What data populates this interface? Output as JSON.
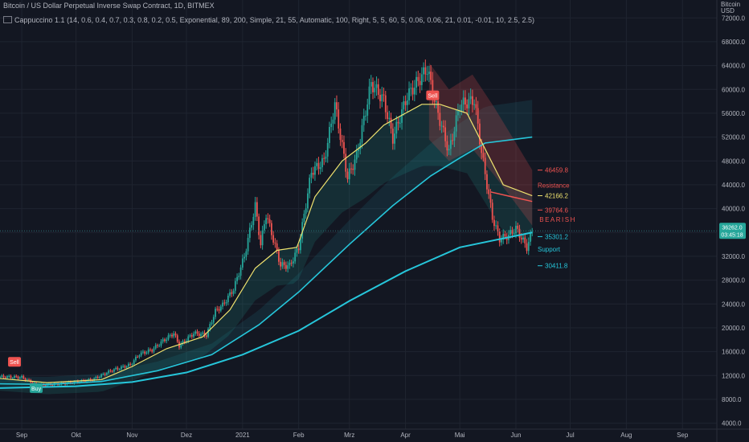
{
  "header": {
    "title": "Bitcoin / US Dollar Perpetual Inverse Swap Contract, 1D, BITMEX",
    "indicator_name": "Cappuccino 1.1",
    "indicator_params": "(14, 0.6, 0.4, 0.7, 0.3, 0.8, 0.2, 0.5, Exponential, 89, 200, Simple, 21, 55, Automatic, 100, Right, 5, 5, 60, 5, 0.06, 0.06, 21, 0.01, -0.01, 10, 2.5, 2.5)"
  },
  "currency": [
    "Bitcoin",
    "USD"
  ],
  "axis": {
    "price_ticks": [
      4000,
      8000,
      12000,
      16000,
      20000,
      24000,
      28000,
      32000,
      36000,
      40000,
      44000,
      48000,
      52000,
      56000,
      60000,
      64000,
      68000,
      72000
    ],
    "price_labels": [
      "4000.0",
      "8000.0",
      "12000.0",
      "16000.0",
      "20000.0",
      "24000.0",
      "28000.0",
      "32000.0",
      "36000.0",
      "40000.0",
      "44000.0",
      "48000.0",
      "52000.0",
      "56000.0",
      "60000.0",
      "64000.0",
      "68000.0",
      "72000.0"
    ],
    "time_labels": [
      "Sep",
      "Okt",
      "Nov",
      "Dez",
      "2021",
      "Feb",
      "Mrz",
      "Apr",
      "Mai",
      "Jun",
      "Jul",
      "Aug",
      "Sep"
    ],
    "ylim": [
      3000,
      75000
    ]
  },
  "last_price": {
    "value": "36262.0",
    "countdown": "03:45:18",
    "price": 36262
  },
  "signals": [
    {
      "label": "Sell",
      "kind": "sell",
      "date": "2020-08-28",
      "price": 14300
    },
    {
      "label": "Buy",
      "kind": "buy",
      "date": "2020-09-09",
      "price": 9900
    },
    {
      "label": "Sell",
      "kind": "sell",
      "date": "2021-04-16",
      "price": 59000
    }
  ],
  "levels": [
    {
      "label": "46459.8",
      "price": 46459.8,
      "color": "#f05350"
    },
    {
      "label": "42166.2",
      "price": 42166.2,
      "color": "#f0e36f"
    },
    {
      "label": "39764.6",
      "price": 39764.6,
      "color": "#f05350"
    },
    {
      "label": "35301.2",
      "price": 35301.2,
      "color": "#26c6da"
    },
    {
      "label": "30411.8",
      "price": 30411.8,
      "color": "#26c6da"
    }
  ],
  "annotations": {
    "resistance": "Resistance",
    "bearish": "BEARISH",
    "support": "Support"
  },
  "colors": {
    "background": "#131722",
    "up": "#26a69a",
    "down": "#ef5350",
    "ema_fast": "#f0e36f",
    "ema_slow": "#26c6da",
    "grid": "#1f2430"
  },
  "chart_data": {
    "type": "line",
    "price_series": [
      [
        "2020-08-20",
        11800
      ],
      [
        "2020-09-01",
        11700
      ],
      [
        "2020-09-10",
        10300
      ],
      [
        "2020-09-25",
        10700
      ],
      [
        "2020-10-10",
        11300
      ],
      [
        "2020-10-21",
        12900
      ],
      [
        "2020-10-31",
        13800
      ],
      [
        "2020-11-05",
        15600
      ],
      [
        "2020-11-12",
        16300
      ],
      [
        "2020-11-18",
        17800
      ],
      [
        "2020-11-24",
        19100
      ],
      [
        "2020-11-27",
        17000
      ],
      [
        "2020-12-05",
        19100
      ],
      [
        "2020-12-12",
        18800
      ],
      [
        "2020-12-17",
        22800
      ],
      [
        "2020-12-21",
        23800
      ],
      [
        "2020-12-27",
        26500
      ],
      [
        "2021-01-02",
        32000
      ],
      [
        "2021-01-08",
        40500
      ],
      [
        "2021-01-11",
        34000
      ],
      [
        "2021-01-14",
        39100
      ],
      [
        "2021-01-22",
        30500
      ],
      [
        "2021-01-27",
        30400
      ],
      [
        "2021-02-01",
        33500
      ],
      [
        "2021-02-08",
        46200
      ],
      [
        "2021-02-15",
        48000
      ],
      [
        "2021-02-21",
        57500
      ],
      [
        "2021-02-28",
        45200
      ],
      [
        "2021-03-05",
        48800
      ],
      [
        "2021-03-13",
        61000
      ],
      [
        "2021-03-20",
        58200
      ],
      [
        "2021-03-25",
        51800
      ],
      [
        "2021-04-02",
        58900
      ],
      [
        "2021-04-13",
        63500
      ],
      [
        "2021-04-18",
        57000
      ],
      [
        "2021-04-25",
        49500
      ],
      [
        "2021-05-01",
        57400
      ],
      [
        "2021-05-09",
        58200
      ],
      [
        "2021-05-13",
        49500
      ],
      [
        "2021-05-19",
        38500
      ],
      [
        "2021-05-23",
        34900
      ],
      [
        "2021-05-28",
        35500
      ],
      [
        "2021-06-01",
        36700
      ],
      [
        "2021-06-07",
        33500
      ],
      [
        "2021-06-10",
        36262
      ]
    ],
    "ema_fast_series": [
      [
        "2020-08-20",
        11500
      ],
      [
        "2020-09-15",
        10800
      ],
      [
        "2020-10-15",
        11300
      ],
      [
        "2020-11-01",
        13500
      ],
      [
        "2020-11-20",
        16500
      ],
      [
        "2020-12-10",
        18500
      ],
      [
        "2020-12-25",
        23000
      ],
      [
        "2021-01-08",
        30000
      ],
      [
        "2021-01-20",
        33000
      ],
      [
        "2021-01-31",
        33500
      ],
      [
        "2021-02-10",
        42000
      ],
      [
        "2021-02-25",
        48000
      ],
      [
        "2021-03-10",
        51000
      ],
      [
        "2021-03-20",
        54000
      ],
      [
        "2021-04-10",
        57500
      ],
      [
        "2021-04-20",
        57500
      ],
      [
        "2021-05-05",
        56000
      ],
      [
        "2021-05-15",
        50000
      ],
      [
        "2021-05-25",
        44000
      ],
      [
        "2021-06-10",
        42166
      ]
    ],
    "ema_slow_series": [
      [
        "2020-08-20",
        10600
      ],
      [
        "2020-09-15",
        10500
      ],
      [
        "2020-10-15",
        11000
      ],
      [
        "2020-11-15",
        12800
      ],
      [
        "2020-12-15",
        15500
      ],
      [
        "2021-01-10",
        20500
      ],
      [
        "2021-02-01",
        26000
      ],
      [
        "2021-03-01",
        34000
      ],
      [
        "2021-03-25",
        40500
      ],
      [
        "2021-04-15",
        45500
      ],
      [
        "2021-05-01",
        48500
      ],
      [
        "2021-05-15",
        51000
      ],
      [
        "2021-06-10",
        52000
      ]
    ],
    "sma_series": [
      [
        "2020-08-20",
        9900
      ],
      [
        "2020-10-01",
        10200
      ],
      [
        "2020-11-01",
        10900
      ],
      [
        "2020-12-01",
        12500
      ],
      [
        "2021-01-01",
        15500
      ],
      [
        "2021-02-01",
        19500
      ],
      [
        "2021-03-01",
        24500
      ],
      [
        "2021-04-01",
        29500
      ],
      [
        "2021-05-01",
        33500
      ],
      [
        "2021-06-10",
        36000
      ]
    ]
  }
}
